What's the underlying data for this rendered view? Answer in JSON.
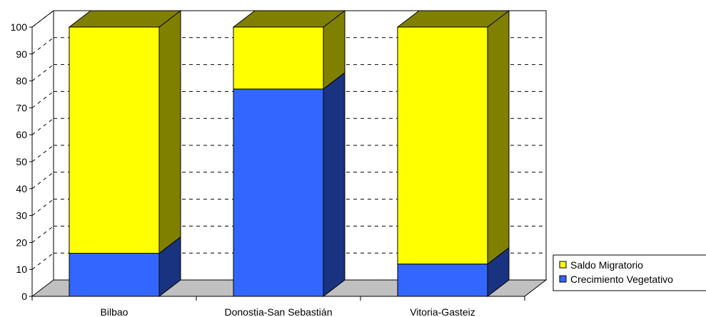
{
  "chart_data": {
    "type": "bar",
    "stacked": true,
    "three_d": true,
    "categories": [
      "Bilbao",
      "Donostia-San Sebastián",
      "Vitoria-Gasteiz"
    ],
    "series": [
      {
        "name": "Crecimiento Vegetativo",
        "values": [
          16,
          77,
          12
        ],
        "color": "#3366ff",
        "side_color": "#1a3380"
      },
      {
        "name": "Saldo Migratorio",
        "values": [
          84,
          23,
          88
        ],
        "color": "#ffff00",
        "side_color": "#808000"
      }
    ],
    "y_ticks": [
      "0",
      "10",
      "20",
      "30",
      "40",
      "50",
      "60",
      "70",
      "80",
      "90",
      "100"
    ],
    "ylim": [
      0,
      100
    ],
    "grid": "dashed",
    "legend_position": "bottom-right",
    "floor_color": "#c0c0c0"
  }
}
